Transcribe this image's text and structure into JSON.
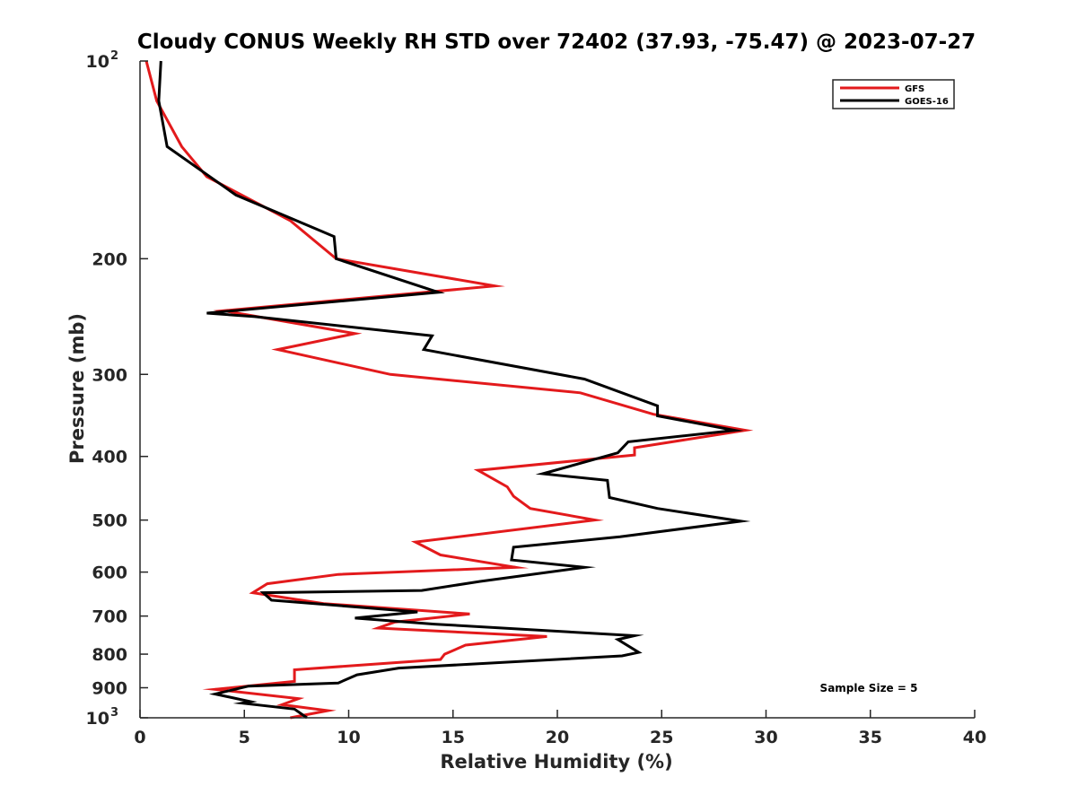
{
  "chart_data": {
    "type": "line",
    "title": "Cloudy CONUS Weekly RH STD over 72402 (37.93, -75.47) @ 2023-07-27",
    "xlabel": "Relative Humidity (%)",
    "ylabel": "Pressure (mb)",
    "xlim": [
      0,
      40
    ],
    "ylim": [
      100,
      1000
    ],
    "y_scale": "log",
    "y_reversed": true,
    "grid": false,
    "legend_position": "top-right",
    "x_ticks": [
      0,
      5,
      10,
      15,
      20,
      25,
      30,
      35,
      40
    ],
    "x_tick_labels": [
      "0",
      "5",
      "10",
      "15",
      "20",
      "25",
      "30",
      "35",
      "40"
    ],
    "y_ticks": [
      100,
      200,
      300,
      400,
      500,
      600,
      700,
      800,
      900,
      1000
    ],
    "y_tick_labels": [
      {
        "base": "10",
        "exp": "2"
      },
      {
        "base": "200",
        "exp": ""
      },
      {
        "base": "300",
        "exp": ""
      },
      {
        "base": "400",
        "exp": ""
      },
      {
        "base": "500",
        "exp": ""
      },
      {
        "base": "600",
        "exp": ""
      },
      {
        "base": "700",
        "exp": ""
      },
      {
        "base": "800",
        "exp": ""
      },
      {
        "base": "900",
        "exp": ""
      },
      {
        "base": "10",
        "exp": "3"
      }
    ],
    "annotation": "Sample Size = 5",
    "series": [
      {
        "name": "GFS",
        "color": "#e31a1c",
        "points": [
          [
            0.3,
            100
          ],
          [
            0.8,
            115
          ],
          [
            2.0,
            135
          ],
          [
            3.2,
            150
          ],
          [
            7.2,
            175
          ],
          [
            9.4,
            200
          ],
          [
            17.0,
            220
          ],
          [
            4.0,
            240
          ],
          [
            10.3,
            260
          ],
          [
            6.6,
            275
          ],
          [
            12.0,
            300
          ],
          [
            21.1,
            320
          ],
          [
            24.6,
            345
          ],
          [
            29.0,
            365
          ],
          [
            23.7,
            388
          ],
          [
            23.7,
            398
          ],
          [
            16.2,
            420
          ],
          [
            17.6,
            445
          ],
          [
            17.9,
            460
          ],
          [
            18.7,
            480
          ],
          [
            21.8,
            500
          ],
          [
            13.2,
            540
          ],
          [
            14.4,
            565
          ],
          [
            18.0,
            590
          ],
          [
            9.5,
            605
          ],
          [
            6.1,
            625
          ],
          [
            5.4,
            645
          ],
          [
            8.8,
            670
          ],
          [
            15.8,
            695
          ],
          [
            12.2,
            715
          ],
          [
            11.4,
            730
          ],
          [
            19.5,
            752
          ],
          [
            15.6,
            775
          ],
          [
            14.6,
            800
          ],
          [
            14.4,
            815
          ],
          [
            7.4,
            845
          ],
          [
            7.4,
            880
          ],
          [
            3.6,
            905
          ],
          [
            7.6,
            935
          ],
          [
            6.8,
            955
          ],
          [
            9.0,
            975
          ],
          [
            7.2,
            1000
          ]
        ]
      },
      {
        "name": "GOES-16",
        "color": "#000000",
        "points": [
          [
            1.0,
            100
          ],
          [
            0.9,
            115
          ],
          [
            1.3,
            135
          ],
          [
            4.6,
            160
          ],
          [
            9.3,
            185
          ],
          [
            9.4,
            200
          ],
          [
            14.3,
            225
          ],
          [
            3.2,
            242
          ],
          [
            5.5,
            245
          ],
          [
            14.0,
            262
          ],
          [
            13.6,
            275
          ],
          [
            21.3,
            305
          ],
          [
            24.8,
            335
          ],
          [
            24.8,
            347
          ],
          [
            28.5,
            365
          ],
          [
            23.4,
            380
          ],
          [
            22.9,
            395
          ],
          [
            19.3,
            425
          ],
          [
            22.4,
            435
          ],
          [
            22.5,
            462
          ],
          [
            24.8,
            480
          ],
          [
            28.8,
            502
          ],
          [
            23.0,
            530
          ],
          [
            17.9,
            550
          ],
          [
            17.8,
            575
          ],
          [
            21.3,
            590
          ],
          [
            16.3,
            620
          ],
          [
            13.5,
            640
          ],
          [
            5.9,
            645
          ],
          [
            6.3,
            662
          ],
          [
            13.3,
            690
          ],
          [
            10.3,
            705
          ],
          [
            14.1,
            720
          ],
          [
            23.7,
            750
          ],
          [
            22.9,
            760
          ],
          [
            23.9,
            795
          ],
          [
            23.1,
            805
          ],
          [
            12.4,
            840
          ],
          [
            10.4,
            860
          ],
          [
            9.5,
            885
          ],
          [
            5.2,
            895
          ],
          [
            3.6,
            920
          ],
          [
            5.3,
            945
          ],
          [
            4.9,
            950
          ],
          [
            7.4,
            970
          ],
          [
            8.0,
            1000
          ]
        ]
      }
    ]
  }
}
